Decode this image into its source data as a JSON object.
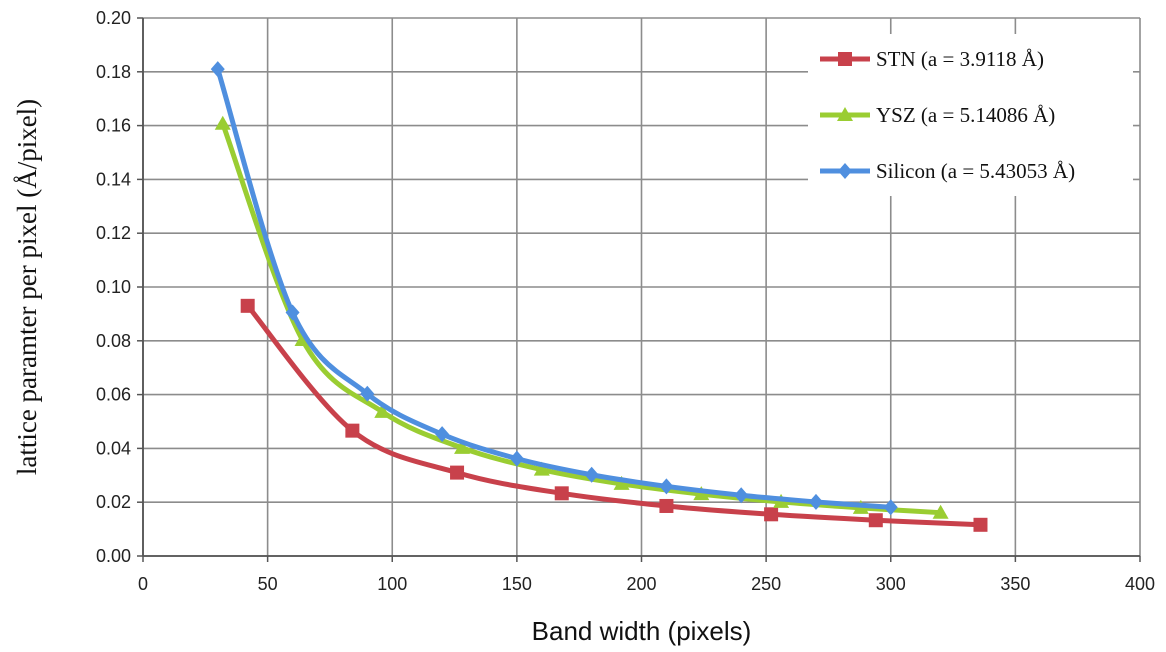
{
  "chart_data": {
    "type": "line",
    "xlabel": "Band width (pixels)",
    "ylabel": "lattice paramter per pixel (Å/pixel)",
    "xlim": [
      0,
      400
    ],
    "ylim": [
      0,
      0.2
    ],
    "xticks": [
      "0",
      "50",
      "100",
      "150",
      "200",
      "250",
      "300",
      "350",
      "400"
    ],
    "yticks": [
      "0.00",
      "0.02",
      "0.04",
      "0.06",
      "0.08",
      "0.10",
      "0.12",
      "0.14",
      "0.16",
      "0.18",
      "0.20"
    ],
    "grid": true,
    "legend_position": "top-right",
    "series": [
      {
        "name": "STN (a = 3.9118 Å)",
        "color": "#c8414b",
        "marker": "square",
        "x": [
          42,
          84,
          126,
          168,
          210,
          252,
          294,
          336
        ],
        "y": [
          0.093,
          0.0466,
          0.031,
          0.0233,
          0.0186,
          0.0155,
          0.0133,
          0.0116
        ]
      },
      {
        "name": "YSZ (a = 5.14086 Å)",
        "color": "#9acd32",
        "marker": "triangle",
        "x": [
          32,
          64,
          96,
          128,
          160,
          192,
          224,
          256,
          288,
          320
        ],
        "y": [
          0.1607,
          0.0803,
          0.0536,
          0.0402,
          0.0321,
          0.0268,
          0.023,
          0.0201,
          0.0179,
          0.0161
        ]
      },
      {
        "name": "Silicon (a = 5.43053 Å)",
        "color": "#4f8fdf",
        "marker": "diamond",
        "x": [
          30,
          60,
          90,
          120,
          150,
          180,
          210,
          240,
          270,
          300
        ],
        "y": [
          0.181,
          0.0905,
          0.0603,
          0.0453,
          0.0362,
          0.0302,
          0.0259,
          0.0226,
          0.0201,
          0.0181
        ]
      }
    ]
  }
}
